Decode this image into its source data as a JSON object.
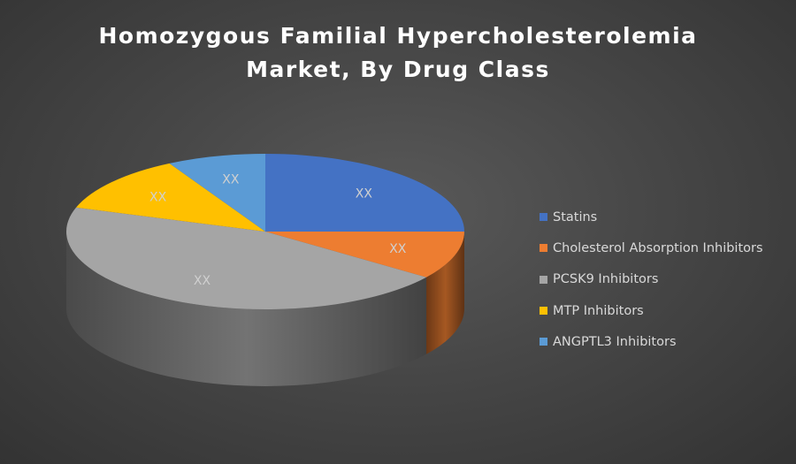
{
  "chart_data": {
    "type": "pie",
    "title_lines": [
      "Homozygous Familial Hypercholesterolemia",
      "Market, By Drug Class"
    ],
    "categories": [
      "Statins",
      "Cholesterol Absorption Inhibitors",
      "PCSK9 Inhibitors",
      "MTP Inhibitors",
      "ANGPTL3 Inhibitors"
    ],
    "values": [
      25,
      10,
      45,
      12,
      8
    ],
    "data_labels": [
      "XX",
      "XX",
      "XX",
      "XX",
      "XX"
    ],
    "colors": [
      "#4472C4",
      "#ED7D31",
      "#A5A5A5",
      "#FFC000",
      "#5B9BD5"
    ],
    "legend_position": "right",
    "style": "3d"
  }
}
